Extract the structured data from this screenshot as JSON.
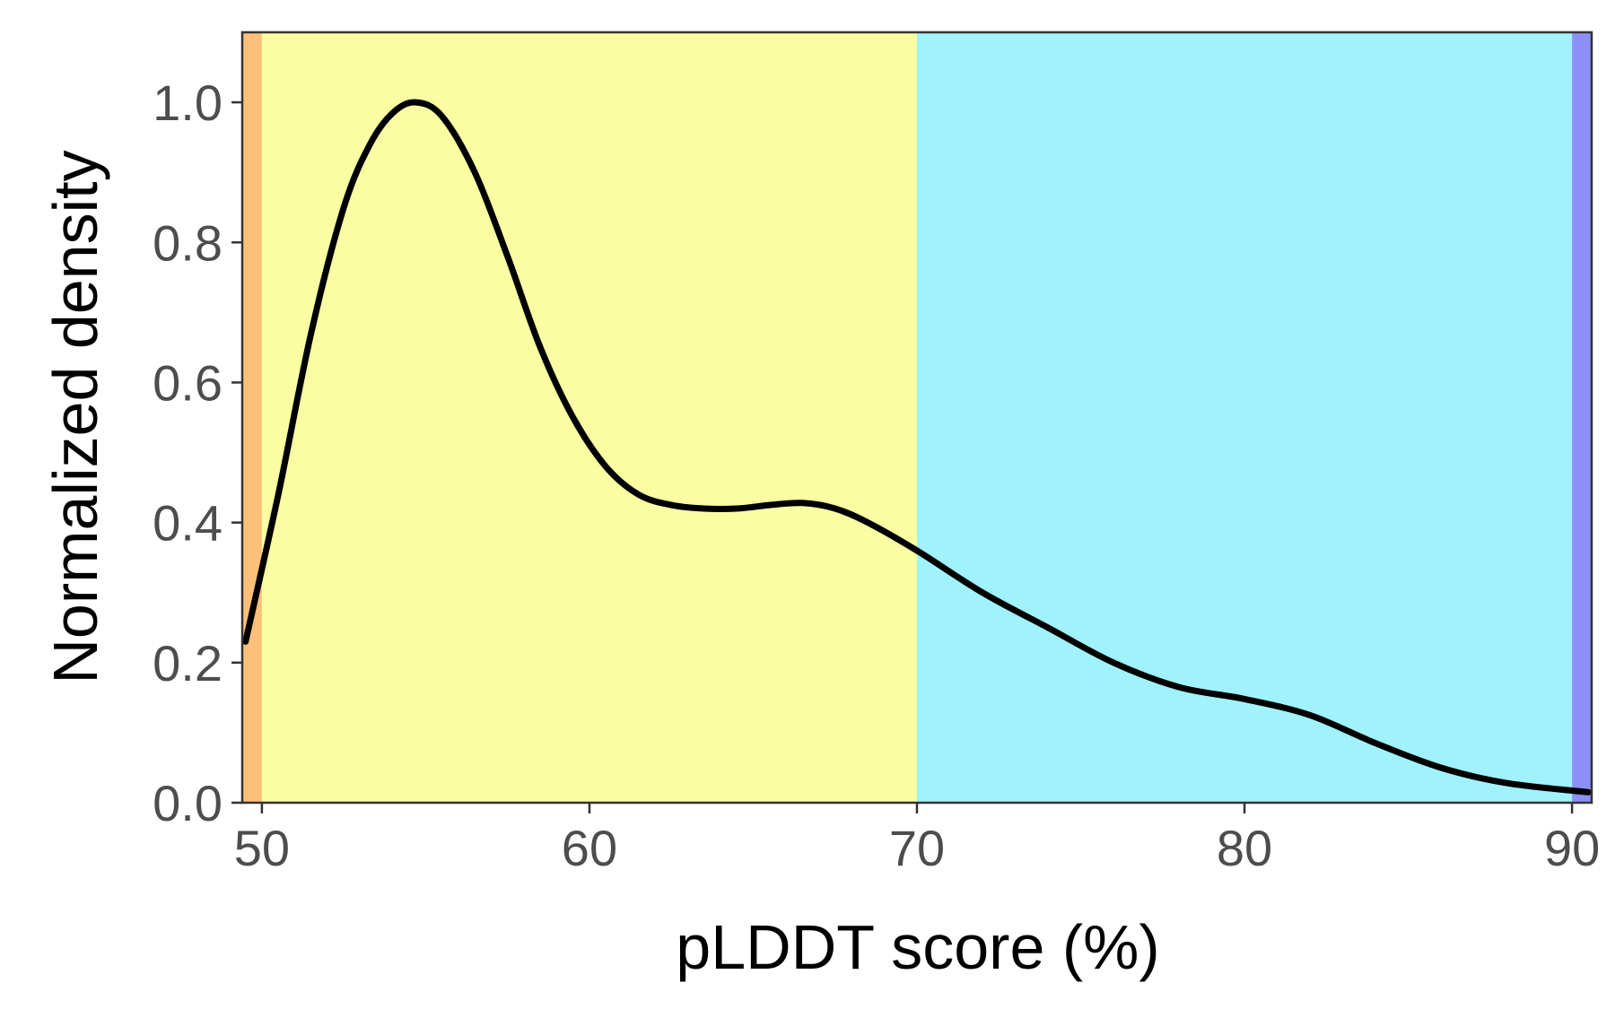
{
  "chart_data": {
    "type": "area",
    "xlabel": "pLDDT score (%)",
    "ylabel": "Normalized density",
    "xlim": [
      49.4,
      90.6
    ],
    "ylim": [
      0,
      1.1
    ],
    "x_ticks": [
      50,
      60,
      70,
      80,
      90
    ],
    "y_ticks": [
      0,
      0.2,
      0.4,
      0.6,
      0.8,
      1.0
    ],
    "x_tick_labels": [
      "50",
      "60",
      "70",
      "80",
      "90"
    ],
    "y_tick_labels": [
      "0.0",
      "0.2",
      "0.4",
      "0.6",
      "0.8",
      "1.0"
    ],
    "grid": false,
    "bands": [
      {
        "from": 49.4,
        "to": 50,
        "color": "#FDC07B"
      },
      {
        "from": 50,
        "to": 70,
        "color": "#FAFDA2"
      },
      {
        "from": 70,
        "to": 90,
        "color": "#A0F2FD"
      },
      {
        "from": 90,
        "to": 90.6,
        "color": "#8C8FF5"
      }
    ],
    "series": [
      {
        "color": "#000000",
        "x": [
          49.5,
          50.5,
          51.5,
          52.5,
          53.3,
          54,
          54.7,
          55.5,
          56.5,
          57.5,
          58.5,
          59.5,
          60.5,
          61.5,
          62.5,
          63.5,
          64.5,
          65.5,
          66.5,
          67.5,
          68.5,
          70,
          72,
          74,
          76,
          78,
          80,
          82,
          84,
          86,
          88,
          90.5
        ],
        "y": [
          0.23,
          0.44,
          0.67,
          0.85,
          0.94,
          0.985,
          1.0,
          0.98,
          0.9,
          0.78,
          0.65,
          0.55,
          0.48,
          0.44,
          0.425,
          0.42,
          0.42,
          0.425,
          0.428,
          0.42,
          0.4,
          0.36,
          0.3,
          0.25,
          0.2,
          0.165,
          0.148,
          0.125,
          0.085,
          0.05,
          0.028,
          0.015
        ]
      }
    ]
  }
}
